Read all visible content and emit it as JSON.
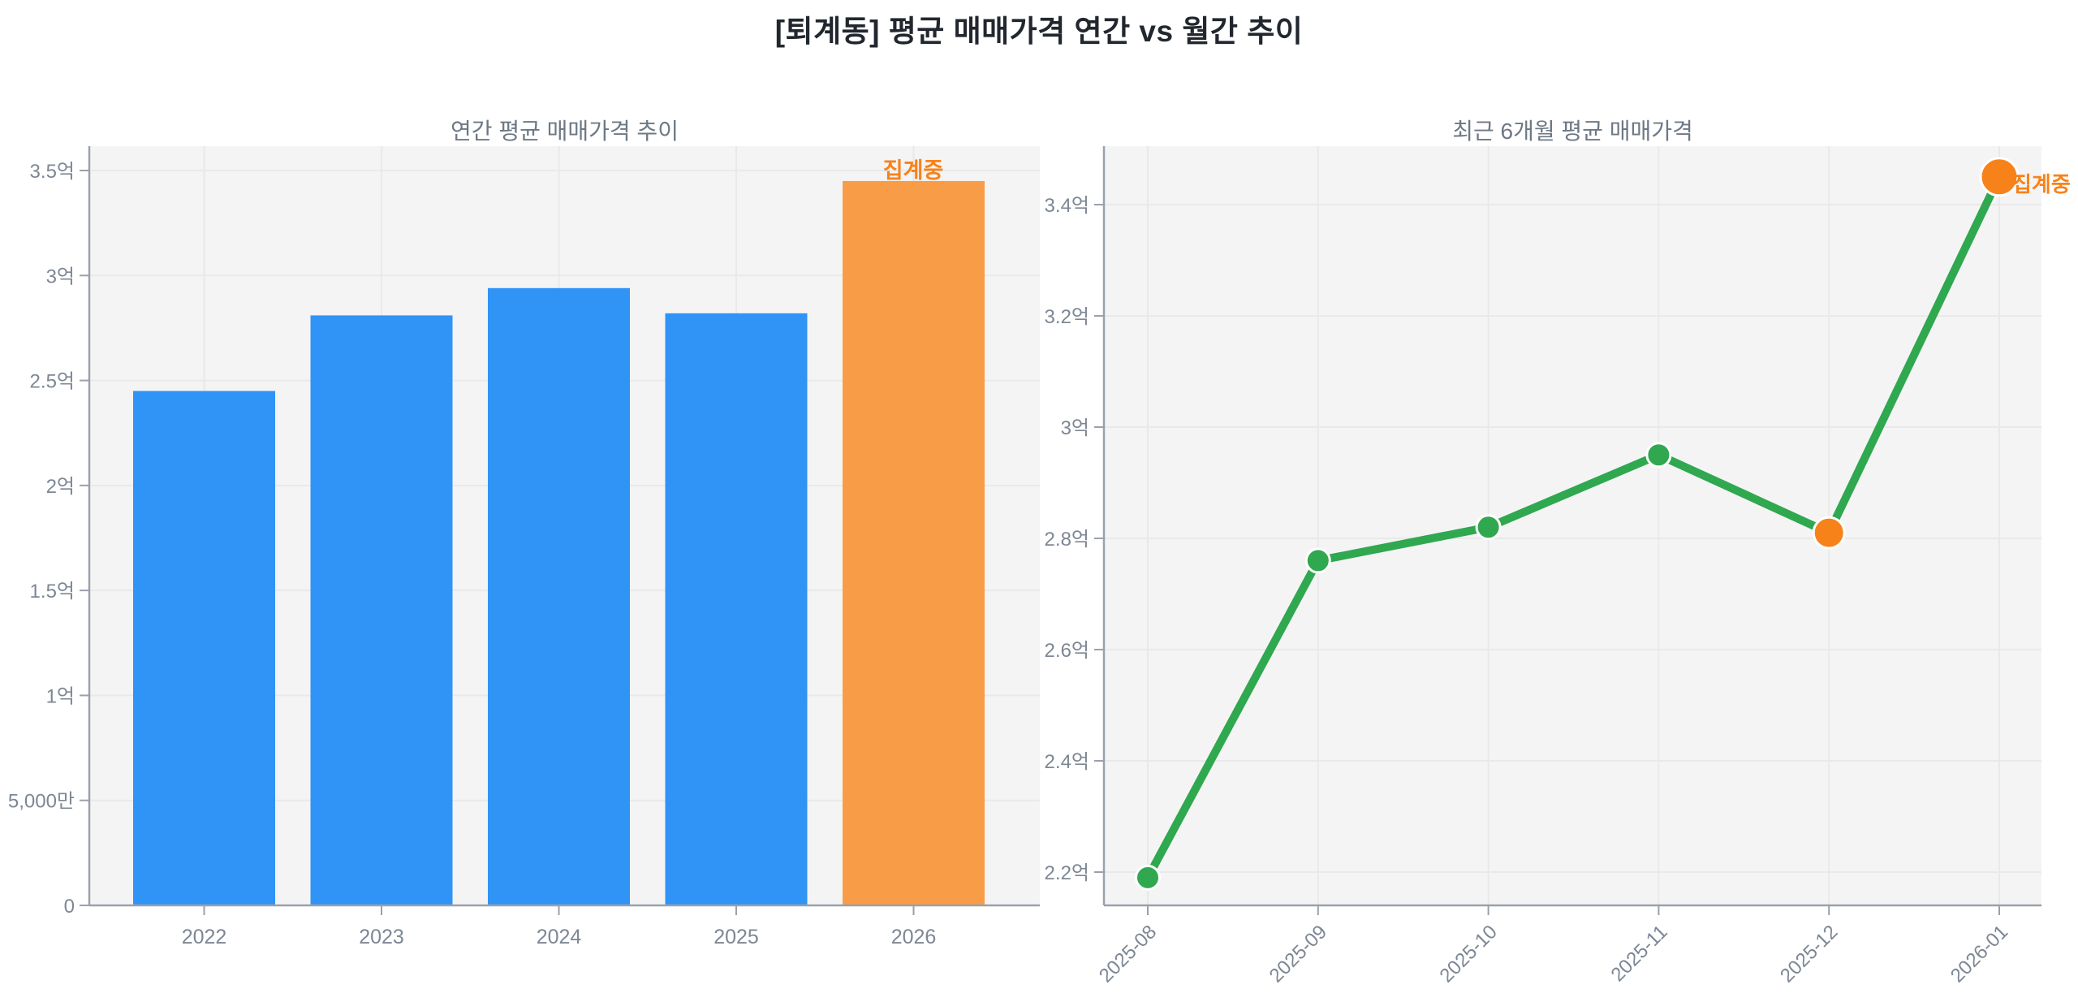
{
  "page_title": "[퇴계동] 평균 매매가격 연간 vs 월간 추이",
  "unit": "억",
  "colors": {
    "bar_blue": "#3093f6",
    "bar_orange": "#f99c47",
    "accent_orange": "#f8821a",
    "line_green": "#2fa84f",
    "plot_background": "#f4f4f5",
    "grid": "#e9e9e9",
    "axis": "#9aa1ab",
    "tick_label": "#7d8794",
    "title": "#22272f",
    "chart_title": "#6d7885"
  },
  "chart_data": [
    {
      "type": "bar",
      "title": "연간 평균 매매가격 추이",
      "categories": [
        "2022",
        "2023",
        "2024",
        "2025",
        "2026"
      ],
      "values": [
        2.45,
        2.81,
        2.94,
        2.82,
        3.45
      ],
      "unit": "억",
      "ylim": [
        0,
        3.62
      ],
      "ytick_values": [
        0,
        0.5,
        1,
        1.5,
        2,
        2.5,
        3,
        3.5
      ],
      "ytick_labels": [
        "0",
        "5,000만",
        "1억",
        "1.5억",
        "2억",
        "2.5억",
        "3억",
        "3.5억"
      ],
      "bar_colors": [
        "#3093f6",
        "#3093f6",
        "#3093f6",
        "#3093f6",
        "#f99c47"
      ],
      "grid": true,
      "annotations": [
        {
          "text": "집계중",
          "category": "2026",
          "color": "#f8821a"
        }
      ]
    },
    {
      "type": "line",
      "title": "최근 6개월 평균 매매가격",
      "x": [
        "2025-08",
        "2025-09",
        "2025-10",
        "2025-11",
        "2025-12",
        "2026-01"
      ],
      "values": [
        2.19,
        2.76,
        2.82,
        2.95,
        2.81,
        3.45
      ],
      "unit": "억",
      "ylim": [
        2.14,
        3.51
      ],
      "ytick_values": [
        2.2,
        2.4,
        2.6,
        2.8,
        3.0,
        3.2,
        3.4
      ],
      "ytick_labels": [
        "2.2억",
        "2.4억",
        "2.6억",
        "2.8억",
        "3억",
        "3.2억",
        "3.4억"
      ],
      "line_color": "#2fa84f",
      "marker_colors": [
        "#2fa84f",
        "#2fa84f",
        "#2fa84f",
        "#2fa84f",
        "#f8821a",
        "#f8821a"
      ],
      "grid": true,
      "annotations": [
        {
          "text": "집계중",
          "x": "2026-01",
          "color": "#f8821a"
        }
      ]
    }
  ]
}
